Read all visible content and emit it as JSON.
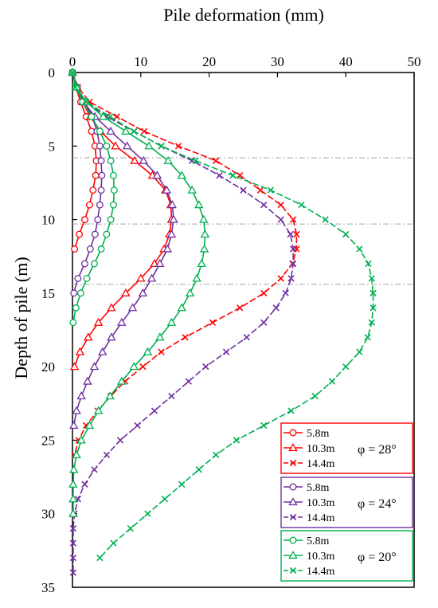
{
  "chart_data": {
    "type": "line",
    "title": "",
    "xlabel": "Pile deformation (mm)",
    "ylabel": "Depth of pile (m)",
    "xlim": [
      0,
      50
    ],
    "ylim": [
      0,
      35
    ],
    "y_inverted": true,
    "x_axis_position": "top",
    "xticks": [
      0,
      10,
      20,
      30,
      40,
      50
    ],
    "yticks": [
      0,
      5,
      10,
      15,
      20,
      25,
      30,
      35
    ],
    "reference_lines_y": [
      5.8,
      10.3,
      14.4
    ],
    "colors": {
      "phi28": "#ff0000",
      "phi24": "#7030a0",
      "phi20": "#00b050"
    },
    "legend_groups": [
      {
        "phi_label": "φ = 28°",
        "color": "#ff0000",
        "entries": [
          "5.8m",
          "10.3m",
          "14.4m"
        ]
      },
      {
        "phi_label": "φ = 24°",
        "color": "#7030a0",
        "entries": [
          "5.8m",
          "10.3m",
          "14.4m"
        ]
      },
      {
        "phi_label": "φ = 20°",
        "color": "#00b050",
        "entries": [
          "5.8m",
          "10.3m",
          "14.4m"
        ]
      }
    ],
    "series": [
      {
        "group": 0,
        "marker": "circle",
        "x": [
          0,
          0.5,
          1.2,
          2.0,
          2.8,
          3.3,
          3.5,
          3.4,
          3.0,
          2.5,
          1.8,
          1.0,
          0.3
        ],
        "y": [
          0,
          1,
          2,
          3,
          4,
          5,
          6,
          7,
          8,
          9,
          10,
          11,
          12
        ]
      },
      {
        "group": 0,
        "marker": "triangle",
        "x": [
          0,
          0.7,
          1.5,
          2.6,
          4.1,
          6.3,
          9.1,
          11.7,
          13.6,
          14.4,
          14.5,
          14.2,
          13.4,
          12.0,
          10.0,
          7.8,
          5.7,
          3.8,
          2.3,
          1.1,
          0.3
        ],
        "y": [
          0,
          1,
          2,
          3,
          4,
          5,
          6,
          7,
          8,
          9,
          10,
          11,
          12,
          13,
          14,
          15,
          16,
          17,
          18,
          19,
          20
        ]
      },
      {
        "group": 0,
        "marker": "x",
        "x": [
          0,
          0.8,
          2.5,
          6.5,
          10.5,
          15.5,
          21.0,
          24.5,
          27.5,
          30.5,
          32.3,
          32.8,
          32.8,
          32.2,
          30.5,
          28.0,
          24.5,
          20.5,
          16.5,
          13.0,
          10.3,
          7.7,
          5.6,
          3.7,
          2.0,
          0.9,
          0.3
        ],
        "y": [
          0,
          1,
          2,
          3,
          4,
          5,
          6,
          7,
          8,
          9,
          10,
          11,
          12,
          13,
          14,
          15,
          16,
          17,
          18,
          19,
          20,
          21,
          22,
          23,
          24,
          25,
          26
        ]
      },
      {
        "group": 1,
        "marker": "circle",
        "x": [
          0,
          0.7,
          1.8,
          2.9,
          3.6,
          4.0,
          4.2,
          4.3,
          4.2,
          4.0,
          3.7,
          3.3,
          2.6,
          1.8,
          0.8,
          0.2
        ],
        "y": [
          0,
          1,
          2,
          3,
          4,
          5,
          6,
          7,
          8,
          9,
          10,
          11,
          12,
          13,
          14,
          15
        ]
      },
      {
        "group": 1,
        "marker": "triangle",
        "x": [
          0,
          0.6,
          1.6,
          3.3,
          5.6,
          8.0,
          10.4,
          12.4,
          13.8,
          14.6,
          14.8,
          14.5,
          13.9,
          12.8,
          11.6,
          10.3,
          8.8,
          7.2,
          5.7,
          4.4,
          3.2,
          2.2,
          1.3,
          0.6,
          0.2
        ],
        "y": [
          0,
          1,
          2,
          3,
          4,
          5,
          6,
          7,
          8,
          9,
          10,
          11,
          12,
          13,
          14,
          15,
          16,
          17,
          18,
          19,
          20,
          21,
          22,
          23,
          24
        ]
      },
      {
        "group": 1,
        "marker": "x",
        "x": [
          0,
          0.5,
          2.0,
          5.0,
          9.0,
          13.0,
          17.5,
          21.5,
          25.0,
          28.0,
          30.5,
          31.9,
          32.3,
          32.3,
          32.0,
          31.2,
          29.8,
          28.0,
          25.5,
          22.5,
          19.5,
          17.0,
          14.5,
          12.0,
          9.5,
          7.0,
          5.0,
          3.2,
          1.8,
          0.8,
          0.3,
          0.1,
          0.1,
          0.1,
          0.1
        ],
        "y": [
          0,
          1,
          2,
          3,
          4,
          5,
          6,
          7,
          8,
          9,
          10,
          11,
          12,
          13,
          14,
          15,
          16,
          17,
          18,
          19,
          20,
          21,
          22,
          23,
          24,
          25,
          26,
          27,
          28,
          29,
          30,
          31,
          32,
          33,
          34
        ]
      },
      {
        "group": 2,
        "marker": "circle",
        "x": [
          0,
          0.5,
          1.5,
          2.8,
          4.0,
          5.0,
          5.6,
          6.0,
          6.1,
          6.0,
          5.6,
          5.0,
          4.2,
          3.2,
          2.1,
          1.2,
          0.5,
          0.1
        ],
        "y": [
          0,
          1,
          2,
          3,
          4,
          5,
          6,
          7,
          8,
          9,
          10,
          11,
          12,
          13,
          14,
          15,
          16,
          17
        ]
      },
      {
        "group": 2,
        "marker": "triangle",
        "x": [
          0,
          0.6,
          2.0,
          4.5,
          7.8,
          11.2,
          14.0,
          16.0,
          17.5,
          18.5,
          19.2,
          19.4,
          19.3,
          18.9,
          18.2,
          17.2,
          16.0,
          14.5,
          12.8,
          11.0,
          9.0,
          7.2,
          5.5,
          3.8,
          2.5,
          1.3,
          0.6,
          0.2,
          0.1,
          0.1,
          0.1
        ],
        "y": [
          0,
          1,
          2,
          3,
          4,
          5,
          6,
          7,
          8,
          9,
          10,
          11,
          12,
          13,
          14,
          15,
          16,
          17,
          18,
          19,
          20,
          21,
          22,
          23,
          24,
          25,
          26,
          27,
          28,
          29,
          30
        ]
      },
      {
        "group": 2,
        "marker": "x",
        "x": [
          0,
          0.4,
          2.0,
          5.5,
          9.0,
          13.0,
          18.0,
          23.5,
          29.0,
          33.5,
          37.0,
          40.0,
          42.0,
          43.3,
          43.8,
          44.0,
          44.0,
          43.8,
          43.2,
          42.0,
          40.0,
          38.0,
          35.5,
          32.0,
          28.0,
          24.0,
          21.0,
          18.5,
          16.0,
          13.5,
          11.0,
          8.5,
          6.0,
          4.0
        ],
        "y": [
          0,
          1,
          2,
          3,
          4,
          5,
          6,
          7,
          8,
          9,
          10,
          11,
          12,
          13,
          14,
          15,
          16,
          17,
          18,
          19,
          20,
          21,
          22,
          23,
          24,
          25,
          26,
          27,
          28,
          29,
          30,
          31,
          32,
          33
        ]
      }
    ]
  }
}
